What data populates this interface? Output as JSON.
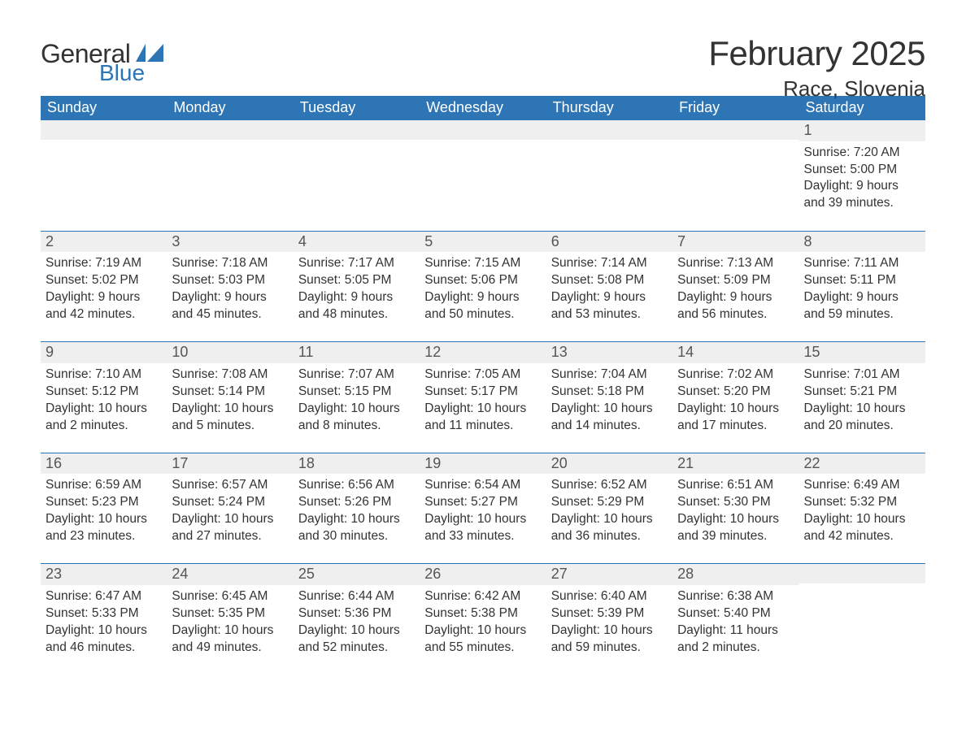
{
  "logo": {
    "general": "General",
    "blue": "Blue"
  },
  "colors": {
    "header_bg": "#2e75b6",
    "header_text": "#ffffff",
    "day_band_bg": "#efefef",
    "week_sep": "#2e75b6",
    "body_text": "#333333",
    "logo_blue": "#2e75b6"
  },
  "title": {
    "month": "February 2025",
    "location": "Race, Slovenia"
  },
  "weekdays": [
    "Sunday",
    "Monday",
    "Tuesday",
    "Wednesday",
    "Thursday",
    "Friday",
    "Saturday"
  ],
  "layout": {
    "columns": 7,
    "rows": 5,
    "first_day_index": 6,
    "days_in_month": 28
  },
  "days": {
    "1": {
      "sunrise": "7:20 AM",
      "sunset": "5:00 PM",
      "daylight": "9 hours and 39 minutes."
    },
    "2": {
      "sunrise": "7:19 AM",
      "sunset": "5:02 PM",
      "daylight": "9 hours and 42 minutes."
    },
    "3": {
      "sunrise": "7:18 AM",
      "sunset": "5:03 PM",
      "daylight": "9 hours and 45 minutes."
    },
    "4": {
      "sunrise": "7:17 AM",
      "sunset": "5:05 PM",
      "daylight": "9 hours and 48 minutes."
    },
    "5": {
      "sunrise": "7:15 AM",
      "sunset": "5:06 PM",
      "daylight": "9 hours and 50 minutes."
    },
    "6": {
      "sunrise": "7:14 AM",
      "sunset": "5:08 PM",
      "daylight": "9 hours and 53 minutes."
    },
    "7": {
      "sunrise": "7:13 AM",
      "sunset": "5:09 PM",
      "daylight": "9 hours and 56 minutes."
    },
    "8": {
      "sunrise": "7:11 AM",
      "sunset": "5:11 PM",
      "daylight": "9 hours and 59 minutes."
    },
    "9": {
      "sunrise": "7:10 AM",
      "sunset": "5:12 PM",
      "daylight": "10 hours and 2 minutes."
    },
    "10": {
      "sunrise": "7:08 AM",
      "sunset": "5:14 PM",
      "daylight": "10 hours and 5 minutes."
    },
    "11": {
      "sunrise": "7:07 AM",
      "sunset": "5:15 PM",
      "daylight": "10 hours and 8 minutes."
    },
    "12": {
      "sunrise": "7:05 AM",
      "sunset": "5:17 PM",
      "daylight": "10 hours and 11 minutes."
    },
    "13": {
      "sunrise": "7:04 AM",
      "sunset": "5:18 PM",
      "daylight": "10 hours and 14 minutes."
    },
    "14": {
      "sunrise": "7:02 AM",
      "sunset": "5:20 PM",
      "daylight": "10 hours and 17 minutes."
    },
    "15": {
      "sunrise": "7:01 AM",
      "sunset": "5:21 PM",
      "daylight": "10 hours and 20 minutes."
    },
    "16": {
      "sunrise": "6:59 AM",
      "sunset": "5:23 PM",
      "daylight": "10 hours and 23 minutes."
    },
    "17": {
      "sunrise": "6:57 AM",
      "sunset": "5:24 PM",
      "daylight": "10 hours and 27 minutes."
    },
    "18": {
      "sunrise": "6:56 AM",
      "sunset": "5:26 PM",
      "daylight": "10 hours and 30 minutes."
    },
    "19": {
      "sunrise": "6:54 AM",
      "sunset": "5:27 PM",
      "daylight": "10 hours and 33 minutes."
    },
    "20": {
      "sunrise": "6:52 AM",
      "sunset": "5:29 PM",
      "daylight": "10 hours and 36 minutes."
    },
    "21": {
      "sunrise": "6:51 AM",
      "sunset": "5:30 PM",
      "daylight": "10 hours and 39 minutes."
    },
    "22": {
      "sunrise": "6:49 AM",
      "sunset": "5:32 PM",
      "daylight": "10 hours and 42 minutes."
    },
    "23": {
      "sunrise": "6:47 AM",
      "sunset": "5:33 PM",
      "daylight": "10 hours and 46 minutes."
    },
    "24": {
      "sunrise": "6:45 AM",
      "sunset": "5:35 PM",
      "daylight": "10 hours and 49 minutes."
    },
    "25": {
      "sunrise": "6:44 AM",
      "sunset": "5:36 PM",
      "daylight": "10 hours and 52 minutes."
    },
    "26": {
      "sunrise": "6:42 AM",
      "sunset": "5:38 PM",
      "daylight": "10 hours and 55 minutes."
    },
    "27": {
      "sunrise": "6:40 AM",
      "sunset": "5:39 PM",
      "daylight": "10 hours and 59 minutes."
    },
    "28": {
      "sunrise": "6:38 AM",
      "sunset": "5:40 PM",
      "daylight": "11 hours and 2 minutes."
    }
  },
  "labels": {
    "sunrise": "Sunrise: ",
    "sunset": "Sunset: ",
    "daylight": "Daylight: "
  }
}
